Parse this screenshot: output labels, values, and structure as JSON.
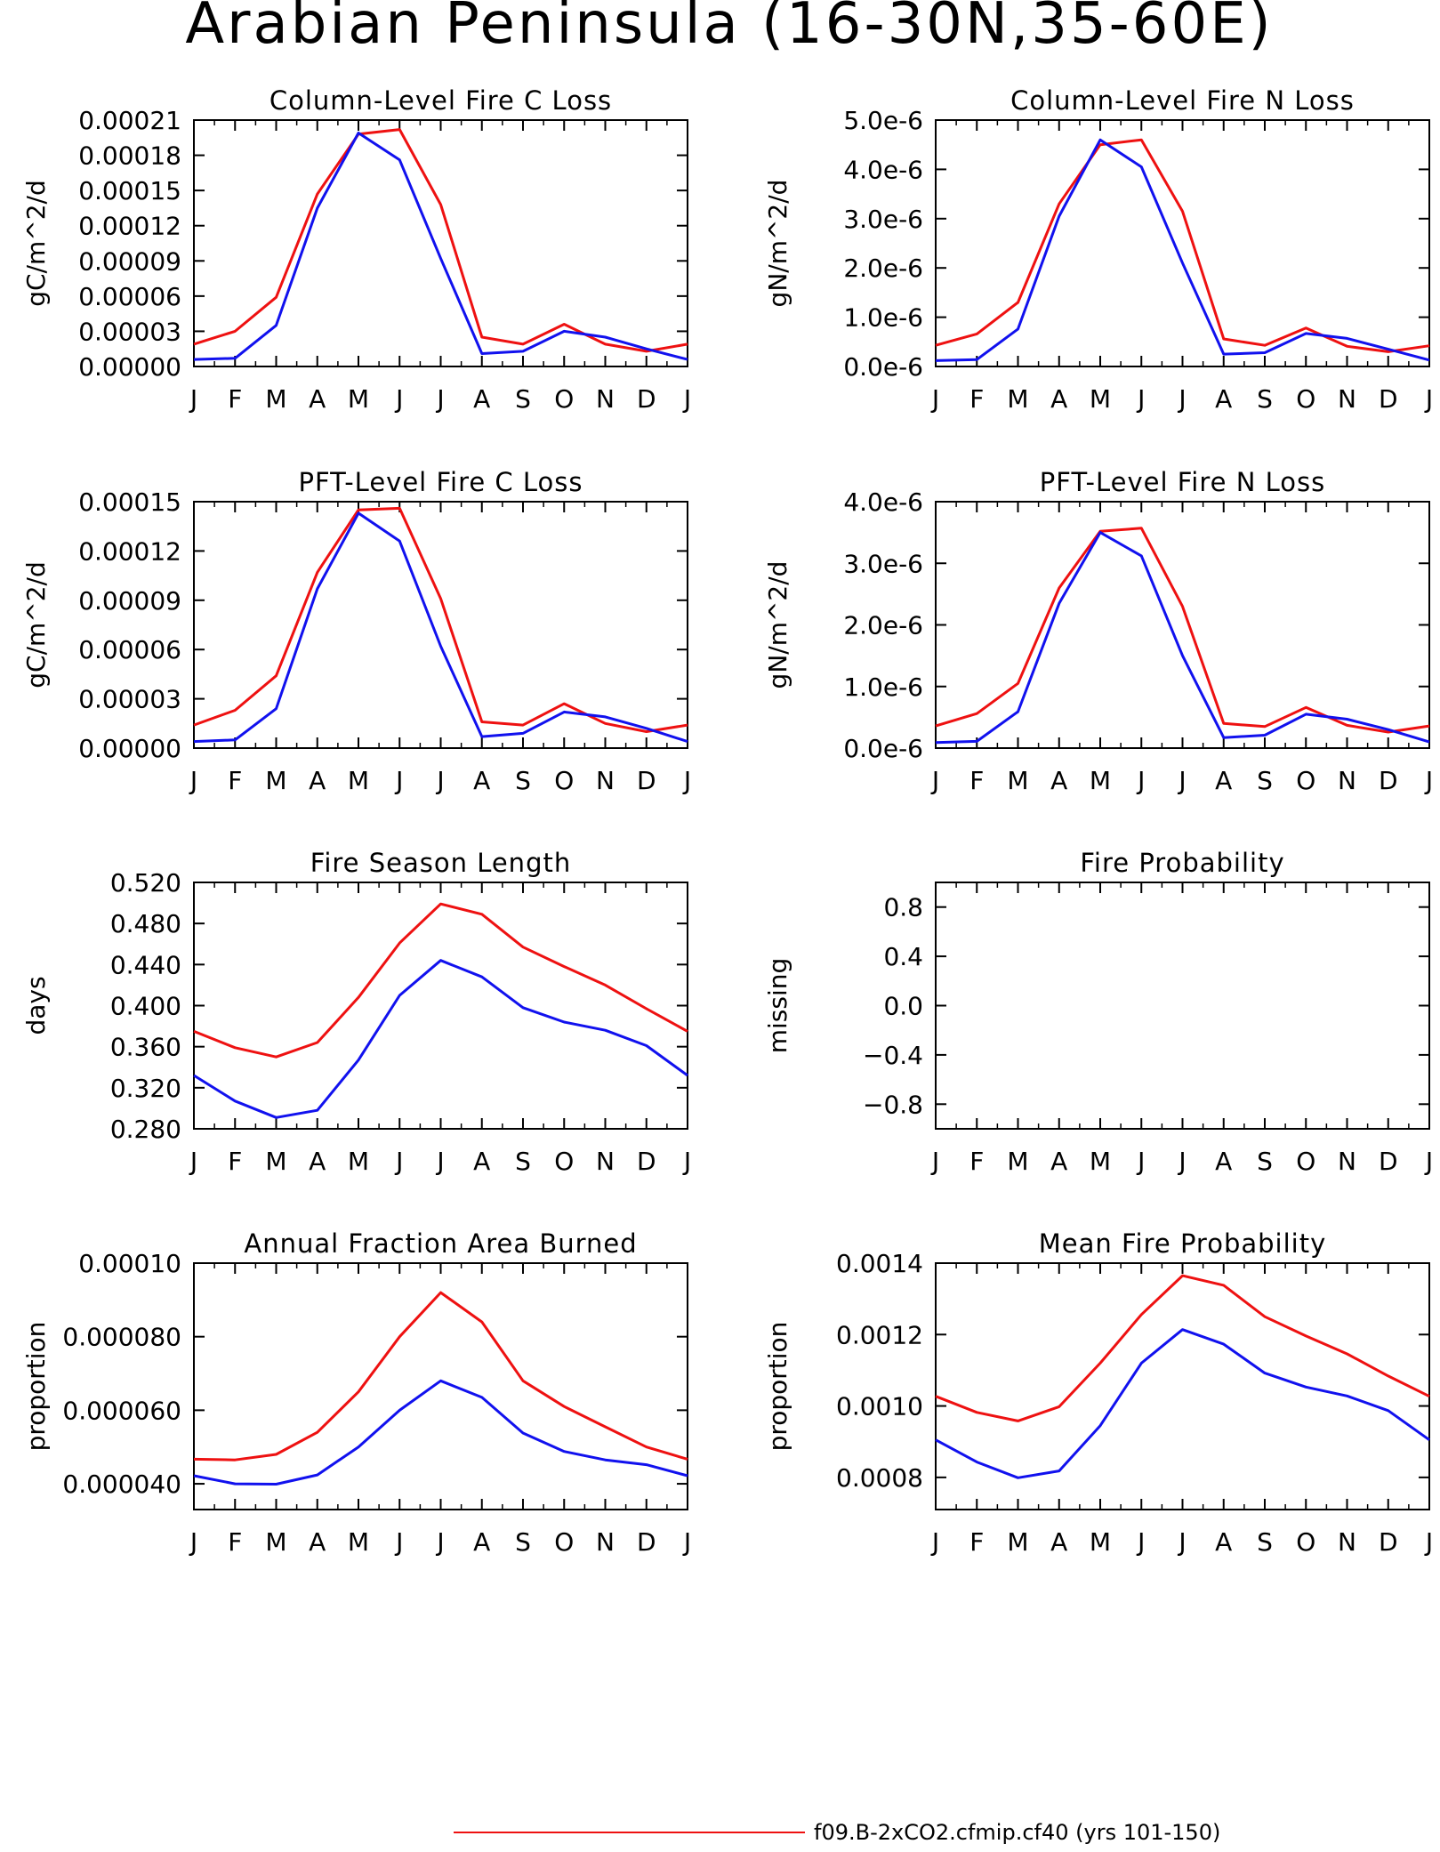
{
  "title": "Arabian Peninsula (16-30N,35-60E)",
  "colors": {
    "series_1": "#ee1111",
    "series_2": "#1111ee",
    "axis": "#000000"
  },
  "legend": {
    "entries": [
      {
        "label": "f09.B-2xCO2.cfmip.cf40 (yrs 101-150)",
        "color": "#ee1111"
      }
    ]
  },
  "chart_data": [
    {
      "type": "line",
      "title": "Column-Level Fire C Loss",
      "ylabel": "gC/m^2/d",
      "categories": [
        "J",
        "F",
        "M",
        "A",
        "M",
        "J",
        "J",
        "A",
        "S",
        "O",
        "N",
        "D",
        "J"
      ],
      "ylim": [
        0,
        0.00021
      ],
      "yticks": [
        0,
        3e-05,
        6e-05,
        9e-05,
        0.00012,
        0.00015,
        0.00018,
        0.00021
      ],
      "ytick_labels": [
        "0.00000",
        "0.00003",
        "0.00006",
        "0.00009",
        "0.00012",
        "0.00015",
        "0.00018",
        "0.00021"
      ],
      "series": [
        {
          "color": "#ee1111",
          "values": [
            1.9e-05,
            3e-05,
            5.9e-05,
            0.000147,
            0.000198,
            0.000202,
            0.000138,
            2.5e-05,
            1.9e-05,
            3.6e-05,
            1.9e-05,
            1.3e-05,
            1.9e-05
          ]
        },
        {
          "color": "#1111ee",
          "values": [
            6e-06,
            7e-06,
            3.5e-05,
            0.000135,
            0.000199,
            0.000176,
            9.2e-05,
            1.1e-05,
            1.3e-05,
            3e-05,
            2.5e-05,
            1.5e-05,
            6e-06
          ]
        }
      ]
    },
    {
      "type": "line",
      "title": "Column-Level Fire N Loss",
      "ylabel": "gN/m^2/d",
      "categories": [
        "J",
        "F",
        "M",
        "A",
        "M",
        "J",
        "J",
        "A",
        "S",
        "O",
        "N",
        "D",
        "J"
      ],
      "ylim": [
        0,
        5e-06
      ],
      "yticks": [
        0,
        1e-06,
        2e-06,
        3e-06,
        4e-06,
        5e-06
      ],
      "ytick_labels": [
        "0.0e-6",
        "1.0e-6",
        "2.0e-6",
        "3.0e-6",
        "4.0e-6",
        "5.0e-6"
      ],
      "series": [
        {
          "color": "#ee1111",
          "values": [
            4.3e-07,
            6.6e-07,
            1.3e-06,
            3.3e-06,
            4.5e-06,
            4.6e-06,
            3.15e-06,
            5.6e-07,
            4.3e-07,
            7.8e-07,
            4.1e-07,
            3e-07,
            4.2e-07
          ]
        },
        {
          "color": "#1111ee",
          "values": [
            1.2e-07,
            1.4e-07,
            7.6e-07,
            3.05e-06,
            4.6e-06,
            4.05e-06,
            2.1e-06,
            2.5e-07,
            2.8e-07,
            6.7e-07,
            5.7e-07,
            3.5e-07,
            1.3e-07
          ]
        }
      ]
    },
    {
      "type": "line",
      "title": "PFT-Level Fire C Loss",
      "ylabel": "gC/m^2/d",
      "categories": [
        "J",
        "F",
        "M",
        "A",
        "M",
        "J",
        "J",
        "A",
        "S",
        "O",
        "N",
        "D",
        "J"
      ],
      "ylim": [
        0,
        0.00015
      ],
      "yticks": [
        0,
        3e-05,
        6e-05,
        9e-05,
        0.00012,
        0.00015
      ],
      "ytick_labels": [
        "0.00000",
        "0.00003",
        "0.00006",
        "0.00009",
        "0.00012",
        "0.00015"
      ],
      "series": [
        {
          "color": "#ee1111",
          "values": [
            1.4e-05,
            2.3e-05,
            4.4e-05,
            0.000107,
            0.000145,
            0.000146,
            9.1e-05,
            1.6e-05,
            1.4e-05,
            2.7e-05,
            1.5e-05,
            1e-05,
            1.4e-05
          ]
        },
        {
          "color": "#1111ee",
          "values": [
            4e-06,
            5e-06,
            2.4e-05,
            9.7e-05,
            0.000143,
            0.000126,
            6.2e-05,
            7e-06,
            9e-06,
            2.2e-05,
            1.9e-05,
            1.2e-05,
            4e-06
          ]
        }
      ]
    },
    {
      "type": "line",
      "title": "PFT-Level Fire N Loss",
      "ylabel": "gN/m^2/d",
      "categories": [
        "J",
        "F",
        "M",
        "A",
        "M",
        "J",
        "J",
        "A",
        "S",
        "O",
        "N",
        "D",
        "J"
      ],
      "ylim": [
        0,
        4e-06
      ],
      "yticks": [
        0,
        1e-06,
        2e-06,
        3e-06,
        4e-06
      ],
      "ytick_labels": [
        "0.0e-6",
        "1.0e-6",
        "2.0e-6",
        "3.0e-6",
        "4.0e-6"
      ],
      "series": [
        {
          "color": "#ee1111",
          "values": [
            3.6e-07,
            5.6e-07,
            1.05e-06,
            2.6e-06,
            3.52e-06,
            3.57e-06,
            2.3e-06,
            4e-07,
            3.5e-07,
            6.6e-07,
            3.7e-07,
            2.6e-07,
            3.6e-07
          ]
        },
        {
          "color": "#1111ee",
          "values": [
            9e-08,
            1.1e-07,
            5.9e-07,
            2.35e-06,
            3.5e-06,
            3.12e-06,
            1.5e-06,
            1.7e-07,
            2.1e-07,
            5.5e-07,
            4.7e-07,
            3e-07,
            1e-07
          ]
        }
      ]
    },
    {
      "type": "line",
      "title": "Fire Season Length",
      "ylabel": "days",
      "categories": [
        "J",
        "F",
        "M",
        "A",
        "M",
        "J",
        "J",
        "A",
        "S",
        "O",
        "N",
        "D",
        "J"
      ],
      "ylim": [
        0.28,
        0.52
      ],
      "yticks": [
        0.28,
        0.32,
        0.36,
        0.4,
        0.44,
        0.48,
        0.52
      ],
      "ytick_labels": [
        "0.280",
        "0.320",
        "0.360",
        "0.400",
        "0.440",
        "0.480",
        "0.520"
      ],
      "series": [
        {
          "color": "#ee1111",
          "values": [
            0.375,
            0.359,
            0.35,
            0.364,
            0.408,
            0.461,
            0.499,
            0.489,
            0.457,
            0.438,
            0.42,
            0.397,
            0.375
          ]
        },
        {
          "color": "#1111ee",
          "values": [
            0.332,
            0.307,
            0.291,
            0.298,
            0.347,
            0.41,
            0.444,
            0.428,
            0.398,
            0.384,
            0.376,
            0.361,
            0.332
          ]
        }
      ]
    },
    {
      "type": "line",
      "title": "Fire Probability",
      "ylabel": "missing",
      "categories": [
        "J",
        "F",
        "M",
        "A",
        "M",
        "J",
        "J",
        "A",
        "S",
        "O",
        "N",
        "D",
        "J"
      ],
      "ylim": [
        -1.0,
        1.0
      ],
      "yticks": [
        -0.8,
        -0.4,
        0.0,
        0.4,
        0.8
      ],
      "ytick_labels": [
        "−0.8",
        "−0.4",
        "0.0",
        "0.4",
        "0.8"
      ],
      "series": []
    },
    {
      "type": "line",
      "title": "Annual Fraction Area Burned",
      "ylabel": "proportion",
      "categories": [
        "J",
        "F",
        "M",
        "A",
        "M",
        "J",
        "J",
        "A",
        "S",
        "O",
        "N",
        "D",
        "J"
      ],
      "ylim": [
        3.3e-05,
        0.0001
      ],
      "yticks": [
        4e-05,
        6e-05,
        8e-05,
        0.0001
      ],
      "ytick_labels": [
        "0.000040",
        "0.000060",
        "0.000080",
        "0.00010"
      ],
      "series": [
        {
          "color": "#ee1111",
          "values": [
            4.67e-05,
            4.65e-05,
            4.8e-05,
            5.4e-05,
            6.5e-05,
            8e-05,
            9.2e-05,
            8.4e-05,
            6.8e-05,
            6.1e-05,
            5.55e-05,
            5e-05,
            4.67e-05
          ]
        },
        {
          "color": "#1111ee",
          "values": [
            4.22e-05,
            4e-05,
            3.99e-05,
            4.24e-05,
            5e-05,
            6e-05,
            6.8e-05,
            6.35e-05,
            5.38e-05,
            4.88e-05,
            4.65e-05,
            4.52e-05,
            4.22e-05
          ]
        }
      ]
    },
    {
      "type": "line",
      "title": "Mean Fire Probability",
      "ylabel": "proportion",
      "categories": [
        "J",
        "F",
        "M",
        "A",
        "M",
        "J",
        "J",
        "A",
        "S",
        "O",
        "N",
        "D",
        "J"
      ],
      "ylim": [
        0.00071,
        0.0014
      ],
      "yticks": [
        0.0008,
        0.001,
        0.0012,
        0.0014
      ],
      "ytick_labels": [
        "0.0008",
        "0.0010",
        "0.0012",
        "0.0014"
      ],
      "series": [
        {
          "color": "#ee1111",
          "values": [
            0.001027,
            0.000982,
            0.000958,
            0.000998,
            0.00112,
            0.001256,
            0.001365,
            0.001338,
            0.00125,
            0.001196,
            0.001146,
            0.001084,
            0.001027
          ]
        },
        {
          "color": "#1111ee",
          "values": [
            0.000905,
            0.000843,
            0.000799,
            0.000818,
            0.000945,
            0.00112,
            0.001214,
            0.001173,
            0.001092,
            0.001053,
            0.001028,
            0.000987,
            0.000905
          ]
        }
      ]
    }
  ]
}
